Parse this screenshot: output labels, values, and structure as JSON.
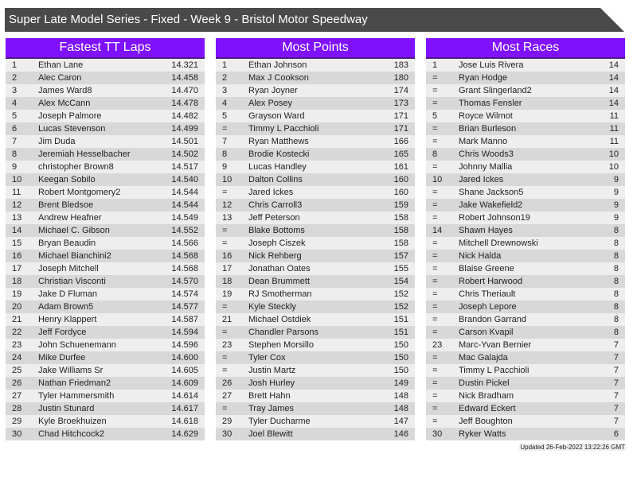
{
  "title": "Super Late Model Series - Fixed - Week 9 - Bristol Motor Speedway",
  "updated": "Updated 26-Feb-2022 13:22:26 GMT",
  "panels": [
    {
      "heading": "Fastest TT Laps",
      "rows": [
        [
          "1",
          "Ethan Lane",
          "14.321"
        ],
        [
          "2",
          "Alec Caron",
          "14.458"
        ],
        [
          "3",
          "James Ward8",
          "14.470"
        ],
        [
          "4",
          "Alex McCann",
          "14.478"
        ],
        [
          "5",
          "Joseph Palmore",
          "14.482"
        ],
        [
          "6",
          "Lucas Stevenson",
          "14.499"
        ],
        [
          "7",
          "Jim Duda",
          "14.501"
        ],
        [
          "8",
          "Jeremiah Hesselbacher",
          "14.502"
        ],
        [
          "9",
          "christopher Brown8",
          "14.517"
        ],
        [
          "10",
          "Keegan Sobilo",
          "14.540"
        ],
        [
          "11",
          "Robert Montgomery2",
          "14.544"
        ],
        [
          "12",
          "Brent Bledsoe",
          "14.544"
        ],
        [
          "13",
          "Andrew Heafner",
          "14.549"
        ],
        [
          "14",
          "Michael C. Gibson",
          "14.552"
        ],
        [
          "15",
          "Bryan Beaudin",
          "14.566"
        ],
        [
          "16",
          "Michael Bianchini2",
          "14.568"
        ],
        [
          "17",
          "Joseph Mitchell",
          "14.568"
        ],
        [
          "18",
          "Christian Visconti",
          "14.570"
        ],
        [
          "19",
          "Jake D Fluman",
          "14.574"
        ],
        [
          "20",
          "Adam Brown5",
          "14.577"
        ],
        [
          "21",
          "Henry Klappert",
          "14.587"
        ],
        [
          "22",
          "Jeff Fordyce",
          "14.594"
        ],
        [
          "23",
          "John Schuenemann",
          "14.596"
        ],
        [
          "24",
          "Mike Durfee",
          "14.600"
        ],
        [
          "25",
          "Jake Williams Sr",
          "14.605"
        ],
        [
          "26",
          "Nathan Friedman2",
          "14.609"
        ],
        [
          "27",
          "Tyler Hammersmith",
          "14.614"
        ],
        [
          "28",
          "Justin Stunard",
          "14.617"
        ],
        [
          "29",
          "Kyle Broekhuizen",
          "14.618"
        ],
        [
          "30",
          "Chad Hitchcock2",
          "14.629"
        ]
      ]
    },
    {
      "heading": "Most Points",
      "rows": [
        [
          "1",
          "Ethan Johnson",
          "183"
        ],
        [
          "2",
          "Max J Cookson",
          "180"
        ],
        [
          "3",
          "Ryan Joyner",
          "174"
        ],
        [
          "4",
          "Alex Posey",
          "173"
        ],
        [
          "5",
          "Grayson Ward",
          "171"
        ],
        [
          "=",
          "Timmy L Pacchioli",
          "171"
        ],
        [
          "7",
          "Ryan Matthews",
          "166"
        ],
        [
          "8",
          "Brodie Kostecki",
          "165"
        ],
        [
          "9",
          "Lucas Handley",
          "161"
        ],
        [
          "10",
          "Dalton Collins",
          "160"
        ],
        [
          "=",
          "Jared Ickes",
          "160"
        ],
        [
          "12",
          "Chris Carroll3",
          "159"
        ],
        [
          "13",
          "Jeff Peterson",
          "158"
        ],
        [
          "=",
          "Blake Bottoms",
          "158"
        ],
        [
          "=",
          "Joseph Ciszek",
          "158"
        ],
        [
          "16",
          "Nick Rehberg",
          "157"
        ],
        [
          "17",
          "Jonathan Oates",
          "155"
        ],
        [
          "18",
          "Dean Brummett",
          "154"
        ],
        [
          "19",
          "RJ Smotherman",
          "152"
        ],
        [
          "=",
          "Kyle Steckly",
          "152"
        ],
        [
          "21",
          "Michael Ostdiek",
          "151"
        ],
        [
          "=",
          "Chandler Parsons",
          "151"
        ],
        [
          "23",
          "Stephen Morsillo",
          "150"
        ],
        [
          "=",
          "Tyler Cox",
          "150"
        ],
        [
          "=",
          "Justin Martz",
          "150"
        ],
        [
          "26",
          "Josh Hurley",
          "149"
        ],
        [
          "27",
          "Brett Hahn",
          "148"
        ],
        [
          "=",
          "Tray James",
          "148"
        ],
        [
          "29",
          "Tyler Ducharme",
          "147"
        ],
        [
          "30",
          "Joel Blewitt",
          "146"
        ]
      ]
    },
    {
      "heading": "Most Races",
      "rows": [
        [
          "1",
          "Jose Luis Rivera",
          "14"
        ],
        [
          "=",
          "Ryan Hodge",
          "14"
        ],
        [
          "=",
          "Grant Slingerland2",
          "14"
        ],
        [
          "=",
          "Thomas Fensler",
          "14"
        ],
        [
          "5",
          "Royce Wilmot",
          "11"
        ],
        [
          "=",
          "Brian Burleson",
          "11"
        ],
        [
          "=",
          "Mark Manno",
          "11"
        ],
        [
          "8",
          "Chris Woods3",
          "10"
        ],
        [
          "=",
          "Johnny Mallia",
          "10"
        ],
        [
          "10",
          "Jared Ickes",
          "9"
        ],
        [
          "=",
          "Shane Jackson5",
          "9"
        ],
        [
          "=",
          "Jake Wakefield2",
          "9"
        ],
        [
          "=",
          "Robert Johnson19",
          "9"
        ],
        [
          "14",
          "Shawn Hayes",
          "8"
        ],
        [
          "=",
          "Mitchell Drewnowski",
          "8"
        ],
        [
          "=",
          "Nick Halda",
          "8"
        ],
        [
          "=",
          "Blaise Greene",
          "8"
        ],
        [
          "=",
          "Robert Harwood",
          "8"
        ],
        [
          "=",
          "Chris Theriault",
          "8"
        ],
        [
          "=",
          "Joseph Lepore",
          "8"
        ],
        [
          "=",
          "Brandon Garrand",
          "8"
        ],
        [
          "=",
          "Carson Kvapil",
          "8"
        ],
        [
          "23",
          "Marc-Yvan Bernier",
          "7"
        ],
        [
          "=",
          "Mac Galajda",
          "7"
        ],
        [
          "=",
          "Timmy L Pacchioli",
          "7"
        ],
        [
          "=",
          "Dustin Pickel",
          "7"
        ],
        [
          "=",
          "Nick Bradham",
          "7"
        ],
        [
          "=",
          "Edward Eckert",
          "7"
        ],
        [
          "=",
          "Jeff Boughton",
          "7"
        ],
        [
          "30",
          "Ryker Watts",
          "6"
        ]
      ]
    }
  ]
}
